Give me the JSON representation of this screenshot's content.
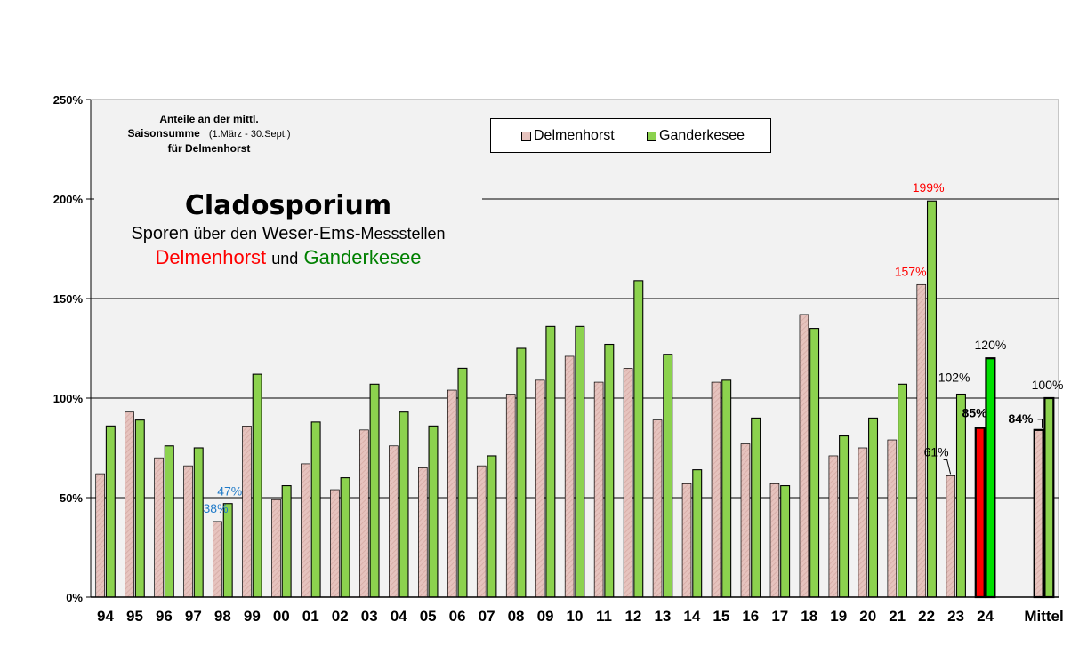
{
  "chart_data": {
    "type": "bar",
    "subtitle_lines": [
      "Anteile an der mittl.",
      "Saisonsumme",
      "(1.März - 30.Sept.)",
      "für Delmenhorst"
    ],
    "title": "Cladosporium",
    "title_line2": [
      "Sporen",
      "über",
      "den",
      "Weser-Ems-",
      "Messstellen"
    ],
    "title_line3": {
      "station1": "Delmenhorst",
      "connector": "und",
      "station2": "Ganderkesee"
    },
    "categories": [
      "94",
      "95",
      "96",
      "97",
      "98",
      "99",
      "00",
      "01",
      "02",
      "03",
      "04",
      "05",
      "06",
      "07",
      "08",
      "09",
      "10",
      "11",
      "12",
      "13",
      "14",
      "15",
      "16",
      "17",
      "18",
      "19",
      "20",
      "21",
      "22",
      "23",
      "24",
      "",
      "Mittel"
    ],
    "series": [
      {
        "name": "Delmenhorst",
        "values": [
          62,
          93,
          70,
          66,
          38,
          86,
          49,
          67,
          54,
          84,
          76,
          65,
          104,
          66,
          102,
          109,
          121,
          108,
          115,
          89,
          57,
          108,
          77,
          57,
          142,
          71,
          75,
          79,
          157,
          61,
          85,
          null,
          84
        ]
      },
      {
        "name": "Ganderkesee",
        "values": [
          86,
          89,
          76,
          75,
          47,
          112,
          56,
          88,
          60,
          107,
          93,
          86,
          115,
          71,
          125,
          136,
          136,
          127,
          159,
          122,
          64,
          109,
          90,
          56,
          135,
          81,
          90,
          107,
          199,
          102,
          120,
          null,
          100
        ]
      }
    ],
    "y_ticks": [
      "0%",
      "50%",
      "100%",
      "150%",
      "200%",
      "250%"
    ],
    "ylim": [
      0,
      250
    ],
    "grid": true,
    "legend_position": "top-center",
    "colors": {
      "delmenhorst": "#e6c3be",
      "ganderkesee": "#8cd24e",
      "delmenhorst_current": "#ff0000",
      "ganderkesee_current": "#00e000",
      "mean_delmenhorst": "#e6c3be",
      "mean_ganderkesee": "#8cd24e",
      "plot_background": "#f2f2f2",
      "label_blue": "#1f7ac8",
      "label_red": "#ff0000"
    },
    "data_labels": [
      {
        "category": "98",
        "series": "Ganderkesee",
        "text": "47%",
        "color": "#1f7ac8"
      },
      {
        "category": "98",
        "series": "Delmenhorst",
        "text": "38%",
        "color": "#1f7ac8"
      },
      {
        "category": "22",
        "series": "Ganderkesee",
        "text": "199%",
        "color": "#ff0000"
      },
      {
        "category": "22",
        "series": "Delmenhorst",
        "text": "157%",
        "color": "#ff0000"
      },
      {
        "category": "23",
        "series": "Ganderkesee",
        "text": "102%",
        "color": "#000000"
      },
      {
        "category": "23",
        "series": "Delmenhorst",
        "text": "61%",
        "color": "#000000"
      },
      {
        "category": "24",
        "series": "Ganderkesee",
        "text": "120%",
        "color": "#000000"
      },
      {
        "category": "24",
        "series": "Delmenhorst",
        "text": "85%",
        "color": "#000000",
        "bold": true
      },
      {
        "category": "Mittel",
        "series": "Ganderkesee",
        "text": "100%",
        "color": "#000000"
      },
      {
        "category": "Mittel",
        "series": "Delmenhorst",
        "text": "84%",
        "color": "#000000",
        "bold": true
      }
    ]
  }
}
